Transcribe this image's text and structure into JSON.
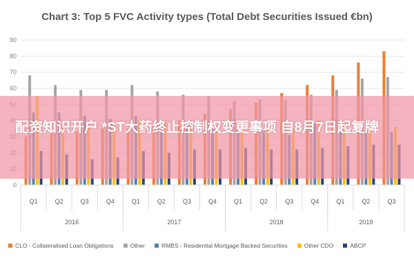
{
  "chart_data": {
    "type": "bar",
    "title": "Chart 3: Top 5 FVC Activity types (Total Debt Securities Issued €bn)",
    "xlabel": "",
    "ylabel": "",
    "ylim": [
      0,
      90
    ],
    "yticks": [
      "0",
      "10",
      "20",
      "30",
      "40",
      "50",
      "60",
      "70",
      "80",
      "90"
    ],
    "grid": true,
    "legend_position": "bottom",
    "quarters": [
      "Q1",
      "Q2",
      "Q3",
      "Q4",
      "Q1",
      "Q2",
      "Q3",
      "Q4",
      "Q1",
      "Q2",
      "Q3",
      "Q4",
      "Q1",
      "Q2",
      "Q3"
    ],
    "years": [
      {
        "label": "2016",
        "span": 4
      },
      {
        "label": "2017",
        "span": 4
      },
      {
        "label": "2018",
        "span": 4
      },
      {
        "label": "2019",
        "span": 3
      }
    ],
    "series": [
      {
        "name": "CLO - Collateralised Loan Obligations",
        "color": "#ed7d31",
        "values": [
          30,
          32,
          33,
          35,
          35,
          37,
          40,
          44,
          47,
          51,
          57,
          62,
          68,
          76,
          83
        ]
      },
      {
        "name": "Other",
        "color": "#a5a5a5",
        "values": [
          68,
          62,
          59,
          59,
          62,
          58,
          56,
          55,
          52,
          53,
          53,
          56,
          59,
          66,
          67
        ]
      },
      {
        "name": "RMBS - Residential Mortgage Backed Securities",
        "color": "#4f81bd",
        "values": [
          45,
          45,
          43,
          41,
          43,
          40,
          38,
          35,
          34,
          34,
          31,
          38,
          35,
          33,
          33
        ]
      },
      {
        "name": "Other CDO",
        "color": "#ffc000",
        "values": [
          55,
          38,
          37,
          37,
          40,
          40,
          37,
          36,
          34,
          35,
          35,
          40,
          38,
          36,
          36
        ]
      },
      {
        "name": "ABCP",
        "color": "#264478",
        "values": [
          21,
          19,
          16,
          17,
          21,
          20,
          22,
          22,
          23,
          22,
          22,
          23,
          24,
          25,
          25
        ]
      }
    ]
  },
  "overlay": {
    "text": "配资知识开户 *ST大药终止控制权变更事项 自8月7日起复牌"
  }
}
